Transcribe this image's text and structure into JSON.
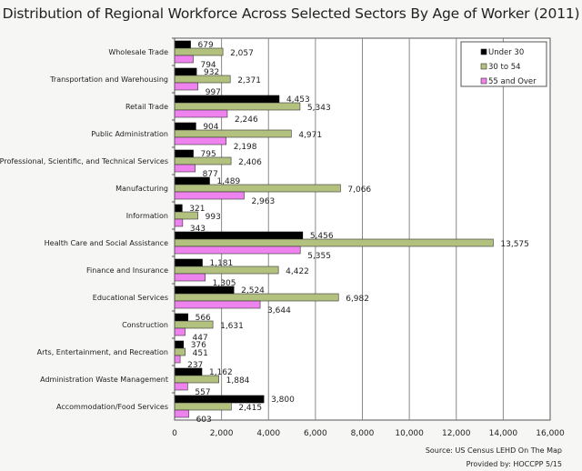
{
  "chart_data": {
    "type": "bar",
    "orientation": "horizontal",
    "title": "Distribution of Regional Workforce Across Selected Sectors By Age of Worker (2011)",
    "xlabel": "",
    "ylabel": "",
    "xlim": [
      0,
      16000
    ],
    "xticks": [
      0,
      2000,
      4000,
      6000,
      8000,
      10000,
      12000,
      14000,
      16000
    ],
    "xtick_labels": [
      "0",
      "2,000",
      "4,000",
      "6,000",
      "8,000",
      "10,000",
      "12,000",
      "14,000",
      "16,000"
    ],
    "grid": "vertical",
    "legend_position": "top-right",
    "categories": [
      "Wholesale Trade",
      "Transportation and Warehousing",
      "Retail Trade",
      "Public Administration",
      "Professional, Scientific, and Technical Services",
      "Manufacturing",
      "Information",
      "Health Care and Social Assistance",
      "Finance and Insurance",
      "Educational Services",
      "Construction",
      "Arts, Entertainment, and Recreation",
      "Administration Waste Management",
      "Accommodation/Food Services"
    ],
    "series": [
      {
        "name": "Under 30",
        "color": "#000000",
        "values": [
          679,
          932,
          4453,
          904,
          795,
          1489,
          321,
          5456,
          1181,
          2524,
          566,
          376,
          1162,
          3800
        ]
      },
      {
        "name": "30 to 54",
        "color": "#b3c17f",
        "values": [
          2057,
          2371,
          5343,
          4971,
          2406,
          7066,
          993,
          13575,
          4422,
          6982,
          1631,
          451,
          1884,
          2415
        ]
      },
      {
        "name": "55 and Over",
        "color": "#ee82ee",
        "values": [
          794,
          997,
          2246,
          2198,
          877,
          2963,
          343,
          5355,
          1305,
          3644,
          447,
          237,
          557,
          603
        ]
      }
    ]
  },
  "footer": {
    "source": "Source:  US Census LEHD On The Map",
    "provided": "Provided by:  HOCCPP 5/15"
  }
}
